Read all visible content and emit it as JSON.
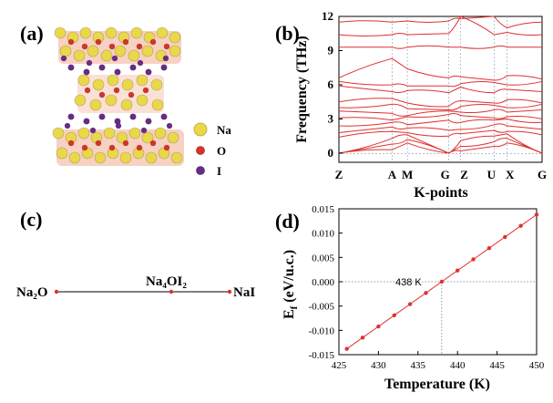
{
  "panels": {
    "a": {
      "label": "(a)",
      "legend": [
        {
          "element": "Na",
          "color": "#e9d84a"
        },
        {
          "element": "O",
          "color": "#d8312a"
        },
        {
          "element": "I",
          "color": "#6a2a8a"
        }
      ]
    },
    "b": {
      "label": "(b)"
    },
    "c": {
      "label": "(c)",
      "compounds": [
        "Na₂O",
        "Na₄OI₂",
        "NaI"
      ]
    },
    "d": {
      "label": "(d)",
      "annotation": "438 K"
    }
  },
  "chart_data": [
    {
      "type": "line",
      "panel": "b",
      "xlabel": "K-points",
      "ylabel": "Frequency (THz)",
      "ylim": [
        -0.8,
        12
      ],
      "yticks": [
        0,
        3,
        6,
        9,
        12
      ],
      "k_labels": [
        "Z",
        "A",
        "M",
        "G",
        "Z",
        "U",
        "X",
        "G"
      ],
      "band_color": "#e03030",
      "grid": "dotted vertical lines at high-symmetry points"
    },
    {
      "type": "line",
      "panel": "d",
      "xlabel": "Temperature (K)",
      "ylabel": "E_f (eV/u.c.)",
      "xlim": [
        425,
        450
      ],
      "ylim": [
        -0.015,
        0.015
      ],
      "xticks": [
        425,
        430,
        435,
        440,
        445,
        450
      ],
      "yticks": [
        -0.015,
        -0.01,
        -0.005,
        0.0,
        0.005,
        0.01,
        0.015
      ],
      "ytick_labels": [
        "-0.015",
        "-0.010",
        "-0.005",
        "0.000",
        "0.005",
        "0.010",
        "0.015"
      ],
      "x": [
        426,
        428,
        430,
        432,
        434,
        436,
        438,
        440,
        442,
        444,
        446,
        448,
        450
      ],
      "y": [
        -0.0138,
        -0.0115,
        -0.0092,
        -0.0069,
        -0.0046,
        -0.0023,
        0.0,
        0.0023,
        0.0046,
        0.0069,
        0.0092,
        0.0115,
        0.0138
      ],
      "crossing": {
        "x": 438,
        "y": 0.0
      },
      "color": "#e03030"
    }
  ]
}
